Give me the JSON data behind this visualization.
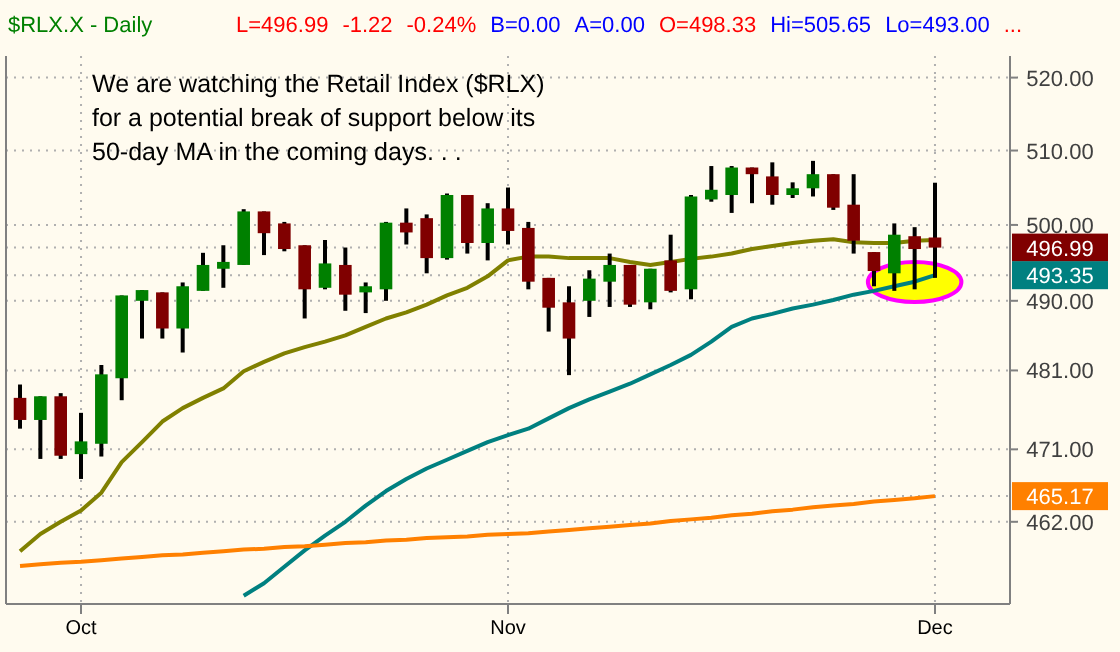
{
  "chart_data": {
    "type": "candlestick",
    "title": "$RLX.X - Daily",
    "subtitle": "L=496.99 -1.22 -0.24% B=0.00 A=0.00 O=498.33 Hi=505.65 Lo=493.00 ...",
    "annotations": [
      "We are watching the Retail Index ($RLX)\nfor a potential break of support below its\n50-day MA in the coming days. . ."
    ],
    "categories": [
      null,
      null,
      null,
      "Oct",
      null,
      null,
      null,
      null,
      null,
      null,
      null,
      null,
      null,
      null,
      null,
      null,
      null,
      null,
      null,
      null,
      null,
      null,
      null,
      null,
      "Nov",
      null,
      null,
      null,
      null,
      null,
      null,
      null,
      null,
      null,
      null,
      null,
      null,
      null,
      null,
      null,
      null,
      null,
      null,
      null,
      null,
      "Dec",
      null,
      null,
      null
    ],
    "log": true,
    "ylim": [
      452,
      523
    ],
    "yticks": [
      {
        "value": 462,
        "label": "462.00"
      },
      {
        "value": 471,
        "label": "471.00"
      },
      {
        "value": 481,
        "label": "481.00"
      },
      {
        "value": 490,
        "label": "490.00"
      },
      {
        "value": 500,
        "label": "500.00"
      },
      {
        "value": 510,
        "label": "510.00"
      },
      {
        "value": 520,
        "label": "520.00"
      },
      {
        "value": 496.99,
        "label": "496.99"
      },
      {
        "value": 493.35,
        "label": "493.35"
      },
      {
        "value": 465.17,
        "label": "465.17"
      }
    ],
    "grid": true,
    "ohlc": [
      [
        477.5,
        479.2,
        473.6,
        474.7
      ],
      [
        474.7,
        477.7,
        469.8,
        477.7
      ],
      [
        477.7,
        478.1,
        469.8,
        470.2
      ],
      [
        470.4,
        475.6,
        467.3,
        472.0
      ],
      [
        471.7,
        481.7,
        470.1,
        480.5
      ],
      [
        480.0,
        490.7,
        477.2,
        490.7
      ],
      [
        490.0,
        491.4,
        485.1,
        491.4
      ],
      [
        491.1,
        491.1,
        485.1,
        486.4
      ],
      [
        486.4,
        492.4,
        483.3,
        491.9
      ],
      [
        491.3,
        496.3,
        491.3,
        494.7
      ],
      [
        494.2,
        497.3,
        491.7,
        495.1
      ],
      [
        494.7,
        502.1,
        494.7,
        501.8
      ],
      [
        501.8,
        501.8,
        496.0,
        498.9
      ],
      [
        500.2,
        500.4,
        496.5,
        496.8
      ],
      [
        497.3,
        497.3,
        487.7,
        491.5
      ],
      [
        491.7,
        498.0,
        491.5,
        494.9
      ],
      [
        494.7,
        497.0,
        488.7,
        490.8
      ],
      [
        491.1,
        492.4,
        488.4,
        491.9
      ],
      [
        491.5,
        500.4,
        490.0,
        500.3
      ],
      [
        500.3,
        502.2,
        497.4,
        499.0
      ],
      [
        500.9,
        501.4,
        493.6,
        495.6
      ],
      [
        495.6,
        504.2,
        495.4,
        504.0
      ],
      [
        504.0,
        504.0,
        496.2,
        497.6
      ],
      [
        497.6,
        502.9,
        495.3,
        502.2
      ],
      [
        502.2,
        505.0,
        497.4,
        499.2
      ],
      [
        499.6,
        500.4,
        491.5,
        492.5
      ],
      [
        493.0,
        493.0,
        486.0,
        489.1
      ],
      [
        489.8,
        491.9,
        480.4,
        485.1
      ],
      [
        490.0,
        494.0,
        487.9,
        492.9
      ],
      [
        492.5,
        496.2,
        489.2,
        494.7
      ],
      [
        494.7,
        494.7,
        489.2,
        489.5
      ],
      [
        489.8,
        494.2,
        488.9,
        494.2
      ],
      [
        495.3,
        498.7,
        491.1,
        491.3
      ],
      [
        491.5,
        504.0,
        490.2,
        503.8
      ],
      [
        503.4,
        507.9,
        503.1,
        504.7
      ],
      [
        504.0,
        507.9,
        501.6,
        507.7
      ],
      [
        507.7,
        507.7,
        502.9,
        506.8
      ],
      [
        506.5,
        508.4,
        502.7,
        504.0
      ],
      [
        504.0,
        505.7,
        503.6,
        504.9
      ],
      [
        504.9,
        508.6,
        503.8,
        506.8
      ],
      [
        506.8,
        506.8,
        502.0,
        502.3
      ],
      [
        502.7,
        506.8,
        496.2,
        497.9
      ],
      [
        496.4,
        496.4,
        491.9,
        493.9
      ],
      [
        493.6,
        500.2,
        491.3,
        498.7
      ],
      [
        498.5,
        499.7,
        491.5,
        496.8
      ],
      [
        498.33,
        505.65,
        493.0,
        496.99
      ],
      null,
      null,
      null
    ],
    "series": [
      {
        "type": "line",
        "color": "#808000",
        "values": [
          458.4,
          460.5,
          462.0,
          463.4,
          465.6,
          469.4,
          471.9,
          474.5,
          476.2,
          477.5,
          478.7,
          480.9,
          482.1,
          483.2,
          484.0,
          484.7,
          485.5,
          486.6,
          487.7,
          488.5,
          489.5,
          490.7,
          491.7,
          493.2,
          495.3,
          495.8,
          495.8,
          495.6,
          495.6,
          495.6,
          495.1,
          494.7,
          495.1,
          495.5,
          495.8,
          496.2,
          496.8,
          497.2,
          497.6,
          497.9,
          498.1,
          497.7,
          497.6,
          497.6,
          497.9,
          498.0,
          null,
          null,
          null
        ]
      },
      {
        "type": "line",
        "color": "#008080",
        "values": [
          null,
          null,
          null,
          null,
          null,
          null,
          null,
          null,
          null,
          null,
          null,
          453.0,
          454.5,
          456.5,
          458.5,
          460.3,
          462.0,
          464.0,
          465.8,
          467.3,
          468.6,
          469.7,
          470.8,
          471.9,
          472.8,
          473.6,
          474.9,
          476.2,
          477.3,
          478.3,
          479.3,
          480.5,
          481.7,
          483.0,
          484.7,
          486.6,
          487.7,
          488.3,
          489.0,
          489.5,
          490.1,
          490.8,
          491.3,
          491.9,
          492.5,
          493.35,
          null,
          null,
          null
        ]
      },
      {
        "type": "line",
        "color": "#ff8000",
        "values": [
          456.6,
          456.8,
          457.0,
          457.1,
          457.3,
          457.5,
          457.7,
          457.9,
          458.0,
          458.2,
          458.4,
          458.6,
          458.7,
          458.9,
          459.0,
          459.2,
          459.4,
          459.5,
          459.7,
          459.8,
          460.0,
          460.1,
          460.2,
          460.4,
          460.5,
          460.6,
          460.8,
          461.0,
          461.2,
          461.4,
          461.6,
          461.8,
          462.1,
          462.3,
          462.5,
          462.8,
          463.0,
          463.3,
          463.5,
          463.8,
          464.0,
          464.2,
          464.5,
          464.7,
          464.9,
          465.17,
          null,
          null,
          null
        ]
      }
    ]
  }
}
